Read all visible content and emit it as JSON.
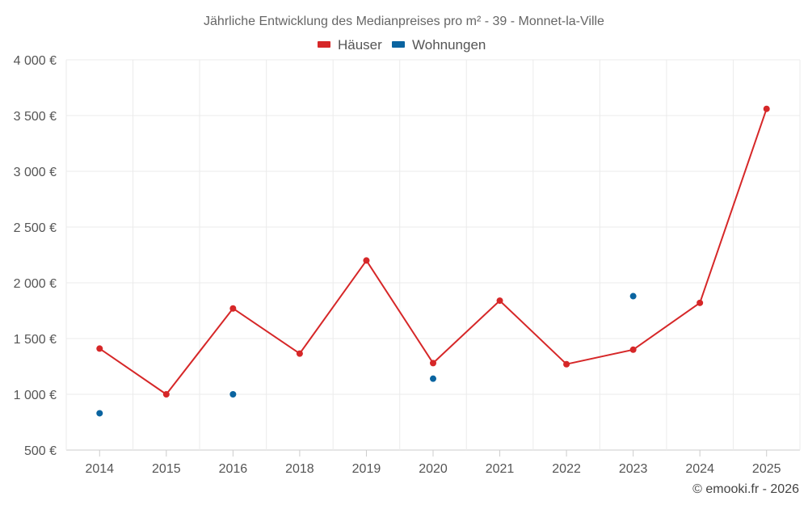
{
  "chart_data": {
    "type": "line",
    "title": "Jährliche Entwicklung des Medianpreises pro m² - 39 - Monnet-la-Ville",
    "categories": [
      "2014",
      "2015",
      "2016",
      "2018",
      "2019",
      "2020",
      "2021",
      "2022",
      "2023",
      "2024",
      "2025"
    ],
    "series": [
      {
        "name": "Häuser",
        "color": "#d62728",
        "mode": "line+markers",
        "values": [
          1410,
          1000,
          1770,
          1365,
          2200,
          1280,
          1840,
          1270,
          1400,
          1820,
          3560
        ]
      },
      {
        "name": "Wohnungen",
        "color": "#0a64a0",
        "mode": "markers",
        "values": [
          830,
          null,
          1000,
          null,
          null,
          1140,
          null,
          null,
          1880,
          null,
          null
        ]
      }
    ],
    "ylim": [
      500,
      4000
    ],
    "yticks": [
      500,
      1000,
      1500,
      2000,
      2500,
      3000,
      3500,
      4000
    ],
    "ytick_labels": [
      "500 €",
      "1 000 €",
      "1 500 €",
      "2 000 €",
      "2 500 €",
      "3 000 €",
      "3 500 €",
      "4 000 €"
    ],
    "xlabel": "",
    "ylabel": "",
    "legend_position": "top-center",
    "grid": true
  },
  "credit": "© emooki.fr - 2026"
}
